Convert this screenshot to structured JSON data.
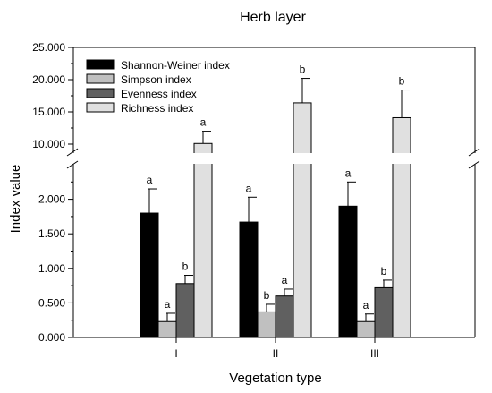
{
  "chart_data": {
    "type": "bar",
    "title": "Herb layer",
    "xlabel": "Vegetation type",
    "ylabel": "Index value",
    "categories": [
      "I",
      "II",
      "III"
    ],
    "axis_break": {
      "lower_range": [
        0,
        2.5
      ],
      "upper_range": [
        8.75,
        25
      ]
    },
    "y_ticks_lower": [
      "0.000",
      "0.500",
      "1.000",
      "1.500",
      "2.000"
    ],
    "y_ticks_upper": [
      "10.000",
      "15.000",
      "20.000",
      "25.000"
    ],
    "legend_position": "top-left",
    "series": [
      {
        "name": "Shannon-Weiner index",
        "color": "#000000",
        "values": [
          1.8,
          1.67,
          1.9
        ],
        "errors": [
          0.35,
          0.36,
          0.35
        ],
        "labels": [
          "a",
          "a",
          "a"
        ]
      },
      {
        "name": "Simpson index",
        "color": "#c0c0c0",
        "values": [
          0.23,
          0.37,
          0.23
        ],
        "errors": [
          0.12,
          0.11,
          0.11
        ],
        "labels": [
          "a",
          "b",
          "a"
        ]
      },
      {
        "name": "Evenness index",
        "color": "#606060",
        "values": [
          0.78,
          0.6,
          0.72
        ],
        "errors": [
          0.12,
          0.1,
          0.11
        ],
        "labels": [
          "b",
          "a",
          "b"
        ]
      },
      {
        "name": "Richness index",
        "color": "#e0e0e0",
        "values": [
          10.1,
          16.4,
          14.1
        ],
        "errors": [
          1.9,
          3.8,
          4.3
        ],
        "labels": [
          "a",
          "b",
          "b"
        ]
      }
    ]
  }
}
